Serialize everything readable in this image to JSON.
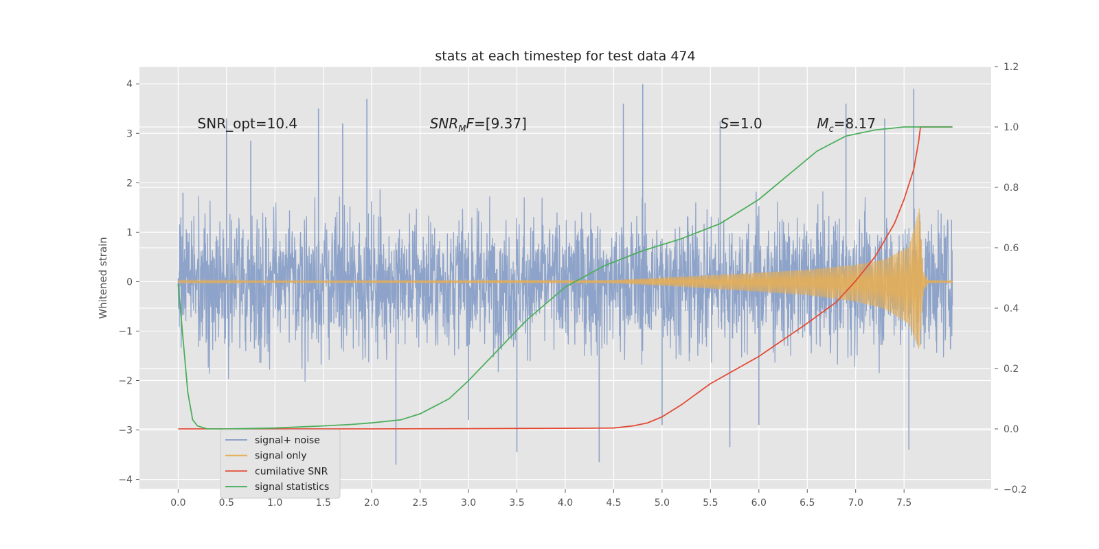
{
  "chart_data": {
    "type": "line",
    "title": "stats at each timestep for test data 474",
    "ylabel": "Whitened strain",
    "xlim": [
      -0.4,
      8.4
    ],
    "ylim": [
      -4.2,
      4.35
    ],
    "y2lim": [
      -0.2,
      1.2
    ],
    "x_ticks": [
      "0.0",
      "0.5",
      "1.0",
      "1.5",
      "2.0",
      "2.5",
      "3.0",
      "3.5",
      "4.0",
      "4.5",
      "5.0",
      "5.5",
      "6.0",
      "6.5",
      "7.0",
      "7.5"
    ],
    "y_ticks": [
      "−4",
      "−3",
      "−2",
      "−1",
      "0",
      "1",
      "2",
      "3",
      "4"
    ],
    "y2_ticks": [
      "−0.2",
      "0.0",
      "0.2",
      "0.4",
      "0.6",
      "0.8",
      "1.0",
      "1.2"
    ],
    "grid": true,
    "legend_position": "lower-left",
    "annotations": [
      {
        "text": "SNR_opt=10.4",
        "x": 0.2,
        "y": 3.2
      },
      {
        "text": "SNRMF=[9.37]",
        "x": 2.6,
        "y": 3.2,
        "math_main": "SNR",
        "math_sub": "M",
        "math_tail": "F=[9.37]"
      },
      {
        "text": "S=1.0",
        "x": 5.6,
        "y": 3.2,
        "math_main": "S",
        "math_tail": "=1.0"
      },
      {
        "text": "Mc=8.17",
        "x": 6.6,
        "y": 3.2,
        "math_main": "M",
        "math_sub": "c",
        "math_tail": "=8.17"
      }
    ],
    "series": [
      {
        "name": "signal+ noise",
        "color": "#8ea3c9",
        "axis": "left",
        "kind": "noise",
        "x_range": [
          0.0,
          8.0
        ],
        "typical_band": [
          -1.2,
          1.2
        ],
        "peaks": [
          [
            0.05,
            1.8
          ],
          [
            0.5,
            3.3
          ],
          [
            0.75,
            2.85
          ],
          [
            1.45,
            3.5
          ],
          [
            1.7,
            3.2
          ],
          [
            1.95,
            3.7
          ],
          [
            2.25,
            -3.7
          ],
          [
            3.0,
            -2.8
          ],
          [
            3.5,
            -3.45
          ],
          [
            4.35,
            -3.65
          ],
          [
            4.6,
            3.6
          ],
          [
            4.8,
            4.0
          ],
          [
            5.6,
            3.25
          ],
          [
            5.7,
            -3.35
          ],
          [
            6.9,
            3.6
          ],
          [
            7.3,
            3.3
          ],
          [
            7.6,
            3.9
          ],
          [
            7.55,
            -3.4
          ],
          [
            6.0,
            -2.9
          ],
          [
            5.0,
            -2.9
          ]
        ]
      },
      {
        "name": "signal only",
        "color": "#e6ae55",
        "axis": "left",
        "kind": "chirp",
        "x_range": [
          0.0,
          8.0
        ],
        "envelope": [
          [
            0.0,
            0.02
          ],
          [
            4.5,
            0.03
          ],
          [
            5.0,
            0.08
          ],
          [
            5.5,
            0.13
          ],
          [
            6.0,
            0.18
          ],
          [
            6.5,
            0.24
          ],
          [
            7.0,
            0.34
          ],
          [
            7.3,
            0.45
          ],
          [
            7.55,
            0.7
          ],
          [
            7.66,
            1.5
          ],
          [
            7.7,
            0.2
          ],
          [
            7.75,
            0.03
          ],
          [
            8.0,
            0.02
          ]
        ],
        "envelope_low": [
          [
            0.0,
            -0.02
          ],
          [
            4.5,
            -0.03
          ],
          [
            5.0,
            -0.08
          ],
          [
            5.5,
            -0.14
          ],
          [
            6.0,
            -0.2
          ],
          [
            6.5,
            -0.27
          ],
          [
            7.0,
            -0.4
          ],
          [
            7.3,
            -0.55
          ],
          [
            7.55,
            -0.85
          ],
          [
            7.66,
            -1.4
          ],
          [
            7.7,
            -0.2
          ],
          [
            7.75,
            -0.03
          ],
          [
            8.0,
            -0.02
          ]
        ]
      },
      {
        "name": "cumilative SNR",
        "color": "#e24a33",
        "axis": "right",
        "x": [
          0.0,
          1.0,
          2.0,
          3.0,
          4.0,
          4.5,
          4.7,
          4.85,
          5.0,
          5.2,
          5.5,
          6.0,
          6.5,
          6.8,
          7.0,
          7.2,
          7.4,
          7.5,
          7.6,
          7.65,
          7.67,
          8.0
        ],
        "values": [
          0.0,
          0.0,
          0.0,
          0.001,
          0.002,
          0.003,
          0.01,
          0.02,
          0.04,
          0.08,
          0.15,
          0.24,
          0.35,
          0.42,
          0.49,
          0.57,
          0.68,
          0.76,
          0.86,
          0.95,
          1.0,
          1.0
        ]
      },
      {
        "name": "signal statistics",
        "color": "#4cae5b",
        "axis": "right",
        "x": [
          0.0,
          0.05,
          0.1,
          0.15,
          0.2,
          0.3,
          0.5,
          1.0,
          1.5,
          1.8,
          2.0,
          2.3,
          2.5,
          2.8,
          3.0,
          3.3,
          3.6,
          4.0,
          4.4,
          4.8,
          5.2,
          5.6,
          6.0,
          6.3,
          6.6,
          6.9,
          7.2,
          7.5,
          7.7,
          8.0
        ],
        "values": [
          0.48,
          0.3,
          0.12,
          0.03,
          0.01,
          0.0,
          0.0,
          0.003,
          0.01,
          0.015,
          0.02,
          0.03,
          0.05,
          0.1,
          0.16,
          0.26,
          0.36,
          0.47,
          0.54,
          0.59,
          0.63,
          0.68,
          0.76,
          0.84,
          0.92,
          0.97,
          0.99,
          1.0,
          1.0,
          1.0
        ]
      }
    ]
  }
}
